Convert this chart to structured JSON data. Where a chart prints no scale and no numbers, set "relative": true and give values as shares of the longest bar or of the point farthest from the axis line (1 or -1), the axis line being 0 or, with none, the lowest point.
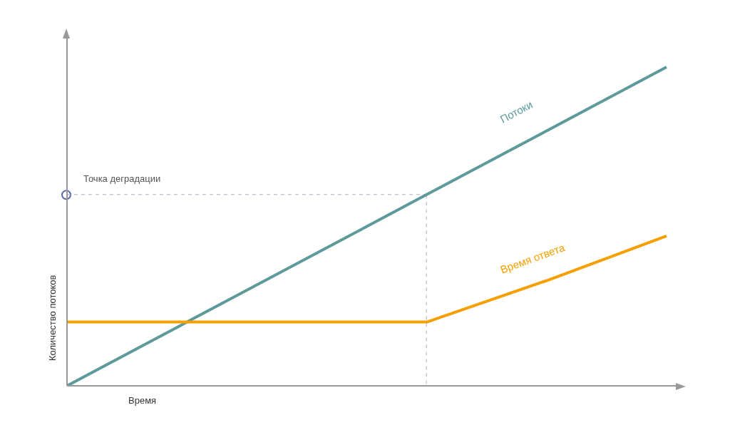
{
  "chart_data": {
    "type": "line",
    "relative": true,
    "xlabel": "Время",
    "ylabel": "Количество потоков",
    "categories": [
      null,
      null,
      null,
      null,
      null,
      null
    ],
    "marker": "none",
    "line_style": "solid",
    "series": [
      {
        "name": "Потоки",
        "color": "#5f9a9a",
        "values": [
          0,
          0.2,
          0.4,
          0.6,
          0.8,
          1
        ]
      },
      {
        "name": "Время ответа",
        "color": "#f5a000",
        "values": [
          0.2,
          0.2,
          0.2,
          0.2,
          0.33,
          0.47
        ]
      }
    ],
    "ref_lines": [
      {
        "axis": "y",
        "value": 0.6,
        "label": "Точка деградации",
        "color": "#a8adc0",
        "line_style": "dashed"
      }
    ]
  }
}
